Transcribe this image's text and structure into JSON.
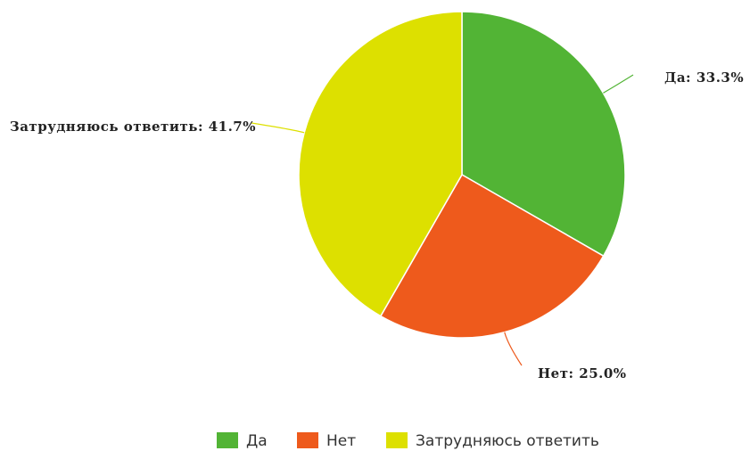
{
  "chart_data": {
    "type": "pie",
    "categories": [
      "Да",
      "Нет",
      "Затрудняюсь ответить"
    ],
    "values": [
      33.3,
      25.0,
      41.7
    ],
    "value_labels": [
      "Да: 33.3%",
      "Нет: 25.0%",
      "Затрудняюсь ответить: 41.7%"
    ],
    "colors": [
      "#52b435",
      "#ee5a1c",
      "#dde000"
    ],
    "legend": "bottom"
  }
}
